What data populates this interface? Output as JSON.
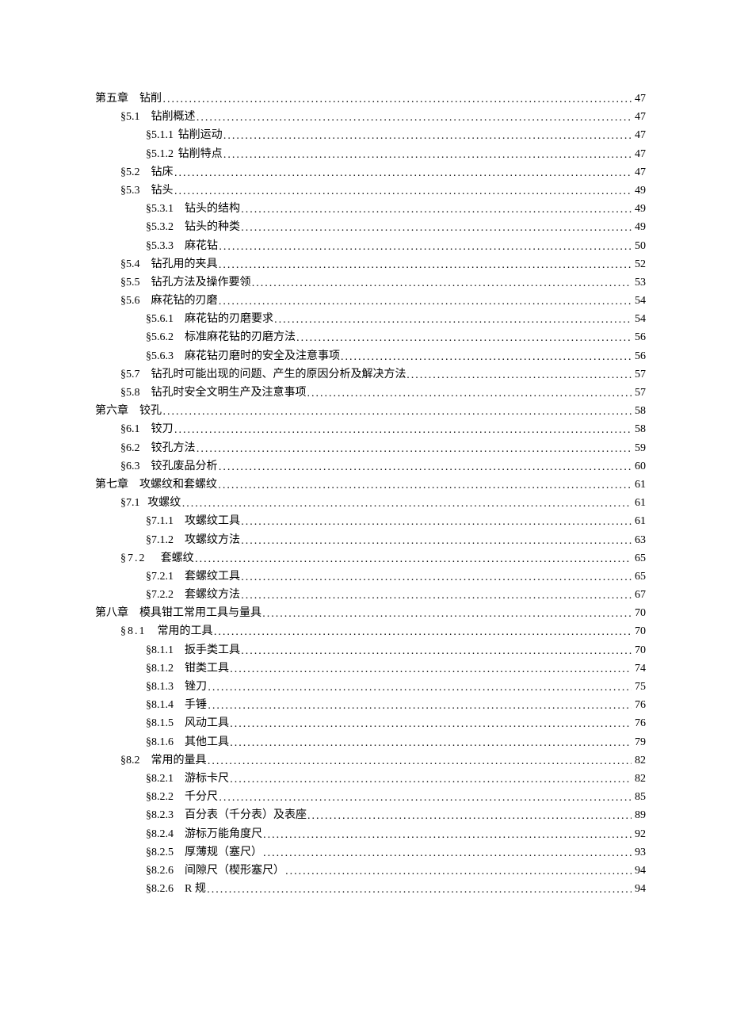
{
  "text_color": "#000000",
  "background_color": "#ffffff",
  "font_size_pt": 10.5,
  "toc": [
    {
      "indent": 0,
      "num": "第五章",
      "gap_em": 1,
      "title": "钻削",
      "page": "47"
    },
    {
      "indent": 1,
      "num": "§5.1",
      "gap_em": 1,
      "title": "钻削概述",
      "page": "47"
    },
    {
      "indent": 2,
      "num": "§5.1.1",
      "gap_em": 0.4,
      "title": "钻削运动",
      "page": "47"
    },
    {
      "indent": 2,
      "num": "§5.1.2",
      "gap_em": 0.4,
      "title": "钻削特点",
      "page": "47"
    },
    {
      "indent": 1,
      "num": "§5.2",
      "gap_em": 1,
      "title": "钻床",
      "page": "47"
    },
    {
      "indent": 1,
      "num": "§5.3",
      "gap_em": 1,
      "title": "钻头",
      "page": "49"
    },
    {
      "indent": 2,
      "num": "§5.3.1",
      "gap_em": 1,
      "title": "钻头的结构",
      "page": "49"
    },
    {
      "indent": 2,
      "num": "§5.3.2",
      "gap_em": 1,
      "title": "钻头的种类",
      "page": "49"
    },
    {
      "indent": 2,
      "num": "§5.3.3",
      "gap_em": 1,
      "title": "麻花钻",
      "page": "50"
    },
    {
      "indent": 1,
      "num": "§5.4",
      "gap_em": 1,
      "title": "钻孔用的夹具",
      "page": "52"
    },
    {
      "indent": 1,
      "num": "§5.5",
      "gap_em": 1,
      "title": "钻孔方法及操作要领",
      "page": "53"
    },
    {
      "indent": 1,
      "num": "§5.6",
      "gap_em": 1,
      "title": "麻花钻的刃磨",
      "page": "54"
    },
    {
      "indent": 2,
      "num": "§5.6.1",
      "gap_em": 1,
      "title": "麻花钻的刃磨要求",
      "page": "54"
    },
    {
      "indent": 2,
      "num": "§5.6.2",
      "gap_em": 1,
      "title": "标准麻花钻的刃磨方法",
      "page": "56"
    },
    {
      "indent": 2,
      "num": "§5.6.3",
      "gap_em": 1,
      "title": "麻花钻刃磨时的安全及注意事项",
      "page": "56"
    },
    {
      "indent": 1,
      "num": "§5.7",
      "gap_em": 1,
      "title": "钻孔时可能出现的问题、产生的原因分析及解决方法",
      "page": "57"
    },
    {
      "indent": 1,
      "num": "§5.8",
      "gap_em": 1,
      "title": "钻孔时安全文明生产及注意事项",
      "page": "57"
    },
    {
      "indent": 0,
      "num": "第六章",
      "gap_em": 1,
      "title": "铰孔",
      "page": "58"
    },
    {
      "indent": 1,
      "num": "§6.1",
      "gap_em": 1,
      "title": "铰刀",
      "page": "58"
    },
    {
      "indent": 1,
      "num": "§6.2",
      "gap_em": 1,
      "title": "铰孔方法",
      "page": "59"
    },
    {
      "indent": 1,
      "num": "§6.3",
      "gap_em": 1,
      "title": "铰孔废品分析",
      "page": "60"
    },
    {
      "indent": 0,
      "num": "第七章",
      "gap_em": 1,
      "title": "攻螺纹和套螺纹",
      "page": "61"
    },
    {
      "indent": 1,
      "num": "§7.1",
      "gap_em": 0.7,
      "title": "攻螺纹",
      "page": "61"
    },
    {
      "indent": 2,
      "num": "§7.1.1",
      "gap_em": 1,
      "title": "攻螺纹工具",
      "page": "61"
    },
    {
      "indent": 2,
      "num": "§7.1.2",
      "gap_em": 1,
      "title": "攻螺纹方法",
      "page": "63"
    },
    {
      "indent": 1,
      "num": "§7.2",
      "gap_em": 1.3,
      "title": "套螺纹",
      "page": "65",
      "wide_sect": true
    },
    {
      "indent": 2,
      "num": "§7.2.1",
      "gap_em": 1,
      "title": "套螺纹工具",
      "page": "65"
    },
    {
      "indent": 2,
      "num": "§7.2.2",
      "gap_em": 1,
      "title": "套螺纹方法",
      "page": "67"
    },
    {
      "indent": 0,
      "num": "第八章",
      "gap_em": 1,
      "title": "模具钳工常用工具与量具",
      "page": "70"
    },
    {
      "indent": 1,
      "num": "§8.1",
      "gap_em": 1,
      "title": "常用的工具",
      "page": "70",
      "wide_sect": true
    },
    {
      "indent": 2,
      "num": "§8.1.1",
      "gap_em": 1,
      "title": "扳手类工具",
      "page": "70"
    },
    {
      "indent": 2,
      "num": "§8.1.2",
      "gap_em": 1,
      "title": "钳类工具",
      "page": "74"
    },
    {
      "indent": 2,
      "num": "§8.1.3",
      "gap_em": 1,
      "title": "锉刀",
      "page": "75"
    },
    {
      "indent": 2,
      "num": "§8.1.4",
      "gap_em": 1,
      "title": "手锤",
      "page": "76"
    },
    {
      "indent": 2,
      "num": "§8.1.5",
      "gap_em": 1,
      "title": "风动工具",
      "page": "76"
    },
    {
      "indent": 2,
      "num": "§8.1.6",
      "gap_em": 1,
      "title": "其他工具",
      "page": "79"
    },
    {
      "indent": 1,
      "num": "§8.2",
      "gap_em": 1,
      "title": "常用的量具",
      "page": "82"
    },
    {
      "indent": 2,
      "num": "§8.2.1",
      "gap_em": 1,
      "title": "游标卡尺",
      "page": "82"
    },
    {
      "indent": 2,
      "num": "§8.2.2",
      "gap_em": 1,
      "title": "千分尺",
      "page": "85"
    },
    {
      "indent": 2,
      "num": "§8.2.3",
      "gap_em": 1,
      "title": "百分表（千分表）及表座",
      "page": "89"
    },
    {
      "indent": 2,
      "num": "§8.2.4",
      "gap_em": 1,
      "title": "游标万能角度尺",
      "page": "92"
    },
    {
      "indent": 2,
      "num": "§8.2.5",
      "gap_em": 1,
      "title": "厚薄规（塞尺）",
      "page": "93"
    },
    {
      "indent": 2,
      "num": "§8.2.6",
      "gap_em": 1,
      "title": "间隙尺（楔形塞尺）",
      "page": "94"
    },
    {
      "indent": 2,
      "num": "§8.2.6",
      "gap_em": 1,
      "title": "R 规",
      "page": "94"
    }
  ]
}
